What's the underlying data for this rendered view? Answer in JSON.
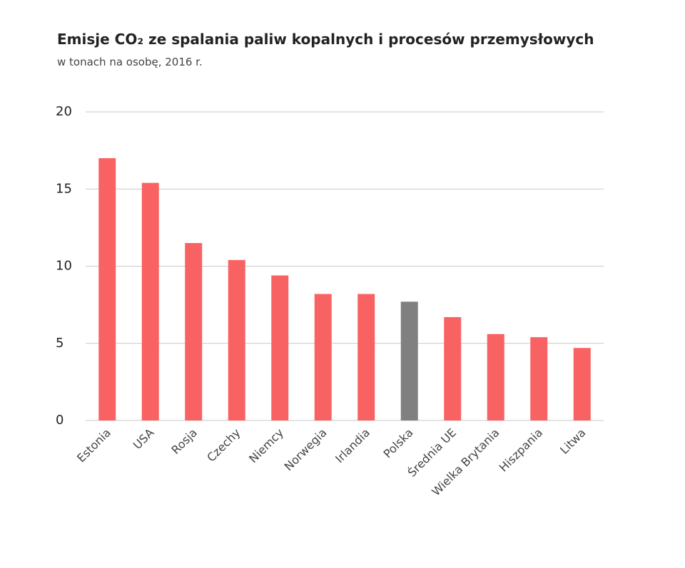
{
  "chart_data": {
    "type": "bar",
    "title": "Emisje CO₂ ze spalania paliw kopalnych i procesów przemysłowych",
    "subtitle": "w tonach na osobę, 2016 r.",
    "categories": [
      "Estonia",
      "USA",
      "Rosja",
      "Czechy",
      "Niemcy",
      "Norwegia",
      "Irlandia",
      "Polska",
      "Średnia UE",
      "Wielka Brytania",
      "Hiszpania",
      "Litwa"
    ],
    "values": [
      17.0,
      15.4,
      11.5,
      10.4,
      9.4,
      8.2,
      8.2,
      7.7,
      6.7,
      5.6,
      5.4,
      4.7
    ],
    "colors": [
      "#f96262",
      "#f96262",
      "#f96262",
      "#f96262",
      "#f96262",
      "#f96262",
      "#f96262",
      "#808080",
      "#f96262",
      "#f96262",
      "#f96262",
      "#f96262"
    ],
    "ylim": [
      0,
      20
    ],
    "yticks": [
      0,
      5,
      10,
      15,
      20
    ],
    "grid": true
  }
}
